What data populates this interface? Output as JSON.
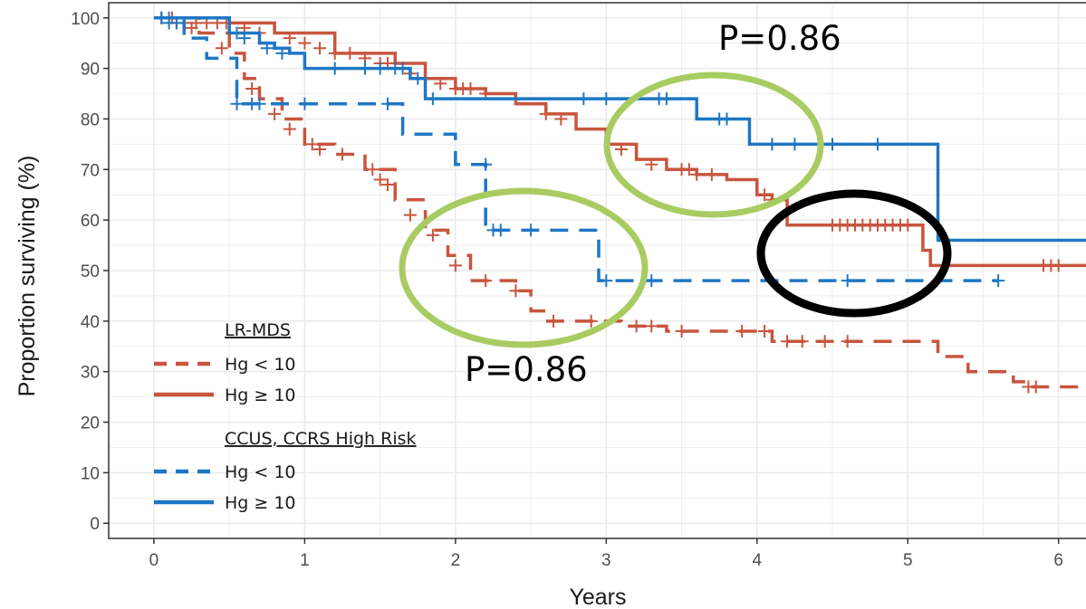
{
  "chart_data": {
    "type": "line",
    "subtype": "kaplan-meier",
    "xlabel": "Years",
    "ylabel": "Proportion surviving (%)",
    "xlim": [
      -0.3,
      6.2
    ],
    "ylim": [
      -3,
      103
    ],
    "x_ticks": [
      "0",
      "1",
      "2",
      "3",
      "4",
      "5",
      "6"
    ],
    "y_ticks": [
      "0",
      "10",
      "20",
      "30",
      "40",
      "50",
      "60",
      "70",
      "80",
      "90",
      "100"
    ],
    "grid": true,
    "colors": {
      "lr_mds": "#c8553d",
      "ccus": "#1f77c4",
      "grid": "#ebebeb",
      "panel_border": "#333333",
      "green_ellipse": "#a8cc62",
      "black_ellipse": "#000000"
    },
    "legend": {
      "placement": "bottom-left",
      "groups": [
        {
          "title": "LR-MDS",
          "items": [
            {
              "label": "Hg < 10",
              "series": "lr_low"
            },
            {
              "label": "Hg ≥ 10",
              "series": "lr_high"
            }
          ]
        },
        {
          "title": "CCUS, CCRS High Risk",
          "items": [
            {
              "label": "Hg < 10",
              "series": "cc_low"
            },
            {
              "label": "Hg ≥ 10",
              "series": "cc_high"
            }
          ]
        }
      ]
    },
    "series": [
      {
        "id": "lr_high",
        "group": "LR-MDS",
        "name": "Hg ≥ 10",
        "color": "#c8553d",
        "dashed": false,
        "steps": [
          [
            0,
            100
          ],
          [
            0.5,
            99
          ],
          [
            0.8,
            97
          ],
          [
            1.2,
            93
          ],
          [
            1.6,
            91
          ],
          [
            1.8,
            88
          ],
          [
            2.0,
            86
          ],
          [
            2.2,
            85
          ],
          [
            2.4,
            83
          ],
          [
            2.6,
            81
          ],
          [
            2.8,
            78
          ],
          [
            3.0,
            75
          ],
          [
            3.2,
            72
          ],
          [
            3.4,
            70
          ],
          [
            3.6,
            69
          ],
          [
            3.8,
            68
          ],
          [
            4.0,
            65
          ],
          [
            4.1,
            64
          ],
          [
            4.2,
            59
          ],
          [
            5.1,
            54
          ],
          [
            5.15,
            51
          ],
          [
            6.2,
            51
          ]
        ],
        "censors": [
          [
            0.05,
            100
          ],
          [
            0.12,
            100
          ],
          [
            0.2,
            99
          ],
          [
            0.28,
            99
          ],
          [
            0.35,
            99
          ],
          [
            0.42,
            99
          ],
          [
            0.48,
            99
          ],
          [
            0.6,
            98
          ],
          [
            0.7,
            97
          ],
          [
            0.9,
            96
          ],
          [
            1.0,
            95
          ],
          [
            1.1,
            94
          ],
          [
            1.2,
            93
          ],
          [
            1.3,
            93
          ],
          [
            1.4,
            92
          ],
          [
            1.5,
            91
          ],
          [
            1.55,
            91
          ],
          [
            1.7,
            89
          ],
          [
            1.9,
            87
          ],
          [
            2.0,
            86
          ],
          [
            2.05,
            86
          ],
          [
            2.1,
            86
          ],
          [
            2.2,
            85
          ],
          [
            2.6,
            81
          ],
          [
            2.7,
            80
          ],
          [
            3.1,
            74
          ],
          [
            3.3,
            71
          ],
          [
            3.5,
            70
          ],
          [
            3.55,
            70
          ],
          [
            3.6,
            69
          ],
          [
            3.7,
            69
          ],
          [
            4.05,
            65
          ],
          [
            4.1,
            64
          ],
          [
            4.5,
            59
          ],
          [
            4.55,
            59
          ],
          [
            4.6,
            59
          ],
          [
            4.65,
            59
          ],
          [
            4.7,
            59
          ],
          [
            4.75,
            59
          ],
          [
            4.8,
            59
          ],
          [
            4.85,
            59
          ],
          [
            4.9,
            59
          ],
          [
            4.95,
            59
          ],
          [
            5.0,
            59
          ],
          [
            5.9,
            51
          ],
          [
            5.95,
            51
          ],
          [
            6.0,
            51
          ]
        ]
      },
      {
        "id": "lr_low",
        "group": "LR-MDS",
        "name": "Hg < 10",
        "color": "#c8553d",
        "dashed": true,
        "steps": [
          [
            0,
            100
          ],
          [
            0.3,
            97
          ],
          [
            0.5,
            93
          ],
          [
            0.6,
            88
          ],
          [
            0.7,
            84
          ],
          [
            0.85,
            80
          ],
          [
            1.0,
            75
          ],
          [
            1.2,
            73
          ],
          [
            1.4,
            70
          ],
          [
            1.6,
            64
          ],
          [
            1.8,
            58
          ],
          [
            1.95,
            53
          ],
          [
            2.1,
            48
          ],
          [
            2.4,
            46
          ],
          [
            2.5,
            42
          ],
          [
            2.6,
            40
          ],
          [
            3.0,
            40
          ],
          [
            3.1,
            39
          ],
          [
            3.4,
            38
          ],
          [
            4.1,
            36
          ],
          [
            5.2,
            33
          ],
          [
            5.4,
            30
          ],
          [
            5.7,
            28
          ],
          [
            5.8,
            27
          ],
          [
            6.2,
            27
          ]
        ],
        "censors": [
          [
            0.05,
            100
          ],
          [
            0.15,
            99
          ],
          [
            0.25,
            98
          ],
          [
            0.45,
            94
          ],
          [
            0.65,
            86
          ],
          [
            0.8,
            81
          ],
          [
            0.9,
            78
          ],
          [
            1.05,
            75
          ],
          [
            1.1,
            74
          ],
          [
            1.25,
            73
          ],
          [
            1.45,
            70
          ],
          [
            1.5,
            68
          ],
          [
            1.55,
            67
          ],
          [
            1.7,
            61
          ],
          [
            1.85,
            57
          ],
          [
            2.0,
            51
          ],
          [
            2.2,
            48
          ],
          [
            2.4,
            46
          ],
          [
            2.65,
            40
          ],
          [
            2.9,
            40
          ],
          [
            3.2,
            39
          ],
          [
            3.3,
            39
          ],
          [
            3.5,
            38
          ],
          [
            3.9,
            38
          ],
          [
            4.05,
            38
          ],
          [
            4.2,
            36
          ],
          [
            4.3,
            36
          ],
          [
            4.45,
            36
          ],
          [
            4.6,
            36
          ],
          [
            5.8,
            27
          ],
          [
            5.85,
            27
          ]
        ]
      },
      {
        "id": "cc_high",
        "group": "CCUS, CCRS High Risk",
        "name": "Hg ≥ 10",
        "color": "#1f77c4",
        "dashed": false,
        "steps": [
          [
            0,
            100
          ],
          [
            0.5,
            97
          ],
          [
            0.7,
            95
          ],
          [
            0.8,
            94
          ],
          [
            0.9,
            93
          ],
          [
            1.0,
            90
          ],
          [
            1.7,
            88
          ],
          [
            1.8,
            84
          ],
          [
            3.6,
            84
          ],
          [
            3.6,
            80
          ],
          [
            3.95,
            80
          ],
          [
            3.95,
            75
          ],
          [
            5.2,
            75
          ],
          [
            5.2,
            56
          ],
          [
            6.2,
            56
          ]
        ],
        "censors": [
          [
            0.05,
            100
          ],
          [
            0.1,
            100
          ],
          [
            0.15,
            99
          ],
          [
            0.55,
            97
          ],
          [
            0.6,
            96
          ],
          [
            0.75,
            94
          ],
          [
            0.85,
            93
          ],
          [
            1.2,
            90
          ],
          [
            1.4,
            90
          ],
          [
            1.5,
            90
          ],
          [
            1.6,
            90
          ],
          [
            1.65,
            90
          ],
          [
            1.75,
            88
          ],
          [
            1.85,
            84
          ],
          [
            2.85,
            84
          ],
          [
            3.0,
            84
          ],
          [
            3.35,
            84
          ],
          [
            3.4,
            84
          ],
          [
            3.75,
            80
          ],
          [
            3.8,
            80
          ],
          [
            4.1,
            75
          ],
          [
            4.25,
            75
          ],
          [
            4.5,
            75
          ],
          [
            4.8,
            75
          ]
        ]
      },
      {
        "id": "cc_low",
        "group": "CCUS, CCRS High Risk",
        "name": "Hg < 10",
        "color": "#1f77c4",
        "dashed": true,
        "steps": [
          [
            0,
            100
          ],
          [
            0.2,
            96
          ],
          [
            0.35,
            92
          ],
          [
            0.55,
            92
          ],
          [
            0.55,
            83
          ],
          [
            1.65,
            83
          ],
          [
            1.65,
            77
          ],
          [
            2.0,
            77
          ],
          [
            2.0,
            71
          ],
          [
            2.2,
            71
          ],
          [
            2.2,
            58
          ],
          [
            2.95,
            58
          ],
          [
            2.95,
            48
          ],
          [
            5.6,
            48
          ],
          [
            5.6,
            48
          ]
        ],
        "censors": [
          [
            0.1,
            99
          ],
          [
            0.55,
            83
          ],
          [
            0.65,
            83
          ],
          [
            0.7,
            83
          ],
          [
            1.0,
            83
          ],
          [
            1.55,
            83
          ],
          [
            2.2,
            71
          ],
          [
            2.25,
            58
          ],
          [
            2.3,
            58
          ],
          [
            2.5,
            58
          ],
          [
            3.0,
            48
          ],
          [
            3.3,
            48
          ],
          [
            4.6,
            48
          ],
          [
            5.6,
            48
          ]
        ]
      }
    ],
    "annotations": [
      {
        "text": "P=0.86",
        "near": "upper"
      },
      {
        "text": "P=0.86",
        "near": "lower"
      }
    ]
  }
}
